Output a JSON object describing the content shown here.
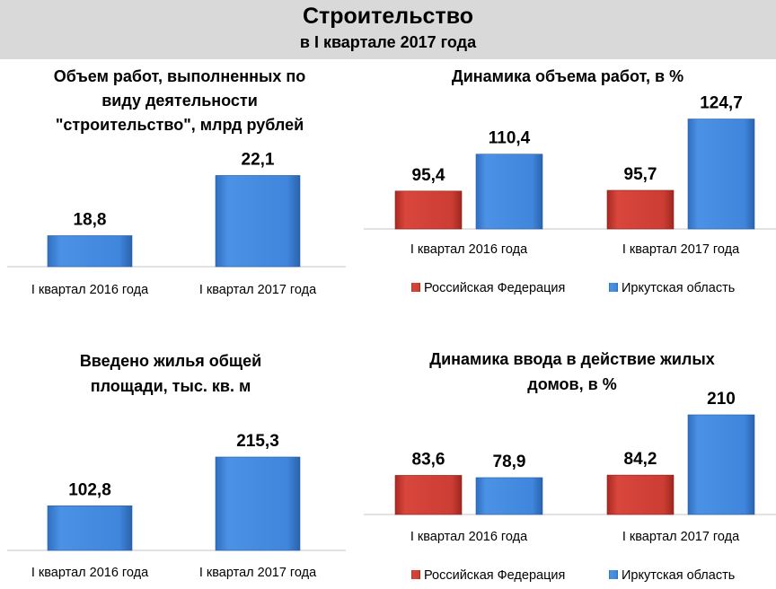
{
  "header": {
    "title": "Строительство",
    "subtitle": "в I квартале 2017 года"
  },
  "colors": {
    "red": "#c0392b",
    "blue": "#3b7fd4",
    "header_bg": "#d9d9d9"
  },
  "chart_data": [
    {
      "type": "bar",
      "title": [
        "Объем работ, выполненных по",
        "виду деятельности",
        "\"строительство\", млрд рублей"
      ],
      "categories": [
        "I квартал 2016 года",
        "I квартал 2017 года"
      ],
      "series": [
        {
          "name": "",
          "color": "blue",
          "values": [
            18.8,
            22.1
          ],
          "labels": [
            "18,8",
            "22,1"
          ]
        }
      ],
      "ylim": [
        17.1,
        23.5
      ],
      "legend": "none"
    },
    {
      "type": "bar",
      "title": [
        "Динамика объема работ, в %"
      ],
      "categories": [
        "I квартал 2016 года",
        "I квартал 2017 года"
      ],
      "series": [
        {
          "name": "Российская Федерация",
          "color": "red",
          "values": [
            95.4,
            95.7
          ],
          "labels": [
            "95,4",
            "95,7"
          ]
        },
        {
          "name": "Иркутская область",
          "color": "blue",
          "values": [
            110.4,
            124.7
          ],
          "labels": [
            "110,4",
            "124,7"
          ]
        }
      ],
      "ylim": [
        80,
        130
      ],
      "legend": "bottom"
    },
    {
      "type": "bar",
      "title": [
        "Введено жилья общей",
        "площади, тыс. кв. м"
      ],
      "categories": [
        "I квартал 2016 года",
        "I квартал 2017 года"
      ],
      "series": [
        {
          "name": "",
          "color": "blue",
          "values": [
            102.8,
            215.3
          ],
          "labels": [
            "102,8",
            "215,3"
          ]
        }
      ],
      "ylim": [
        0,
        230
      ],
      "legend": "none"
    },
    {
      "type": "bar",
      "title": [
        "Динамика ввода в действие жилых",
        "домов, в %"
      ],
      "categories": [
        "I квартал 2016 года",
        "I квартал 2017 года"
      ],
      "series": [
        {
          "name": "Российская Федерация",
          "color": "red",
          "values": [
            83.6,
            84.2
          ],
          "labels": [
            "83,6",
            "84,2"
          ]
        },
        {
          "name": "Иркутская область",
          "color": "blue",
          "values": [
            78.9,
            210
          ],
          "labels": [
            "78,9",
            "210"
          ]
        }
      ],
      "ylim": [
        2,
        230
      ],
      "legend": "bottom"
    }
  ]
}
